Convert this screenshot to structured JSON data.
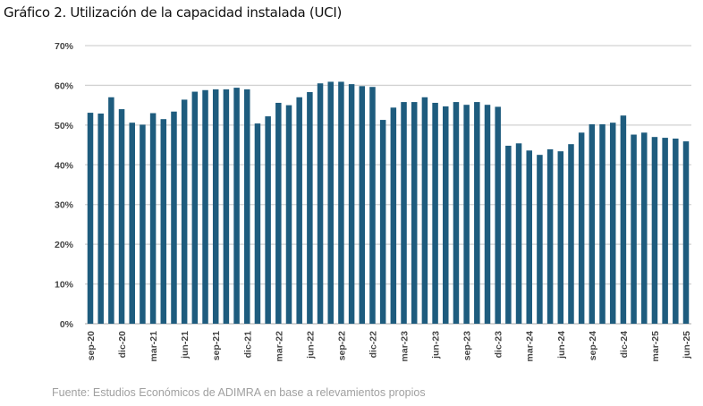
{
  "chart_data": {
    "type": "bar",
    "title": "Gráfico 2. Utilización de la capacidad instalada (UCI)",
    "source": "Fuente: Estudios Económicos de ADIMRA en base a relevamientos propios",
    "xlabel": "",
    "ylabel": "",
    "ylim": [
      0,
      70
    ],
    "yticks": [
      "0%",
      "10%",
      "20%",
      "30%",
      "40%",
      "50%",
      "60%",
      "70%"
    ],
    "grid": true,
    "color": "#1e5c7e",
    "categories": [
      "sep-20",
      "oct-20",
      "nov-20",
      "dic-20",
      "ene-21",
      "feb-21",
      "mar-21",
      "abr-21",
      "may-21",
      "jun-21",
      "jul-21",
      "ago-21",
      "sep-21",
      "oct-21",
      "nov-21",
      "dic-21",
      "ene-22",
      "feb-22",
      "mar-22",
      "abr-22",
      "may-22",
      "jun-22",
      "jul-22",
      "ago-22",
      "sep-22",
      "oct-22",
      "nov-22",
      "dic-22",
      "ene-23",
      "feb-23",
      "mar-23",
      "abr-23",
      "may-23",
      "jun-23",
      "jul-23",
      "ago-23",
      "sep-23",
      "oct-23",
      "nov-23",
      "dic-23",
      "ene-24",
      "feb-24",
      "mar-24",
      "abr-24",
      "may-24",
      "jun-24",
      "jul-24",
      "ago-24",
      "sep-24",
      "oct-24",
      "nov-24",
      "dic-24",
      "ene-25",
      "feb-25",
      "mar-25",
      "abr-25",
      "may-25",
      "jun-25"
    ],
    "xtick_labels": [
      "sep-20",
      "dic-20",
      "mar-21",
      "jun-21",
      "sep-21",
      "dic-21",
      "mar-22",
      "jun-22",
      "sep-22",
      "dic-22",
      "mar-23",
      "jun-23",
      "sep-23",
      "dic-23",
      "mar-24",
      "jun-24",
      "sep-24",
      "dic-24",
      "mar-25",
      "jun-25"
    ],
    "values": [
      53.1,
      52.9,
      57.0,
      54.0,
      50.6,
      50.1,
      53.0,
      51.5,
      53.4,
      56.4,
      58.4,
      58.8,
      59.0,
      59.0,
      59.4,
      59.0,
      50.4,
      52.2,
      55.6,
      55.0,
      57.0,
      58.3,
      60.5,
      60.9,
      60.9,
      60.3,
      59.8,
      59.6,
      51.3,
      54.4,
      55.8,
      55.8,
      57.0,
      55.6,
      54.7,
      55.8,
      55.1,
      55.8,
      55.1,
      54.6,
      44.8,
      45.4,
      43.6,
      42.5,
      43.9,
      43.4,
      45.2,
      48.1,
      50.2,
      50.2,
      50.6,
      52.4,
      47.6,
      48.1,
      47.0,
      46.8,
      46.6,
      45.9
    ]
  }
}
